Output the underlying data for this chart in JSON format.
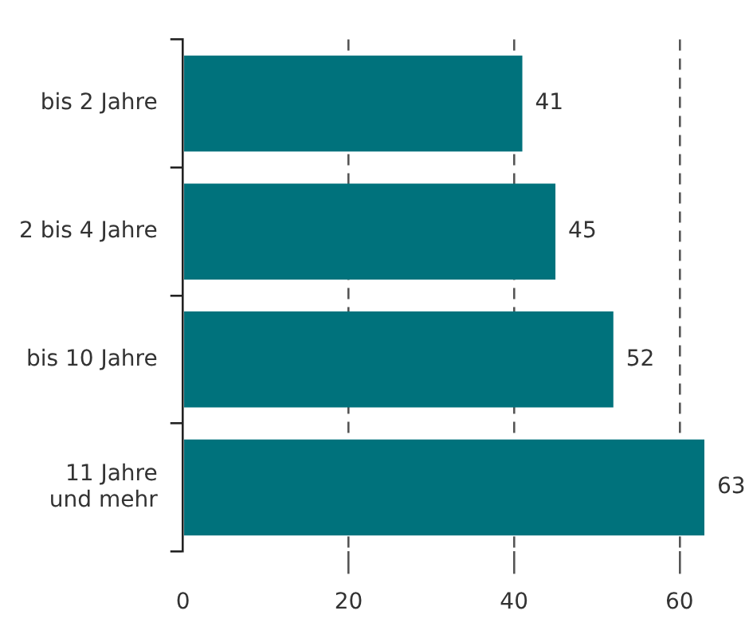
{
  "chart_data": {
    "type": "bar",
    "orientation": "horizontal",
    "categories": [
      "bis 2 Jahre",
      "2 bis 4 Jahre",
      "bis 10 Jahre",
      "11 Jahre und mehr"
    ],
    "values": [
      41,
      45,
      52,
      63
    ],
    "color": "#00727c",
    "xlim": [
      0,
      63
    ],
    "xticks": [
      0,
      20,
      40,
      60
    ],
    "grid": "x",
    "data_labels": true
  }
}
